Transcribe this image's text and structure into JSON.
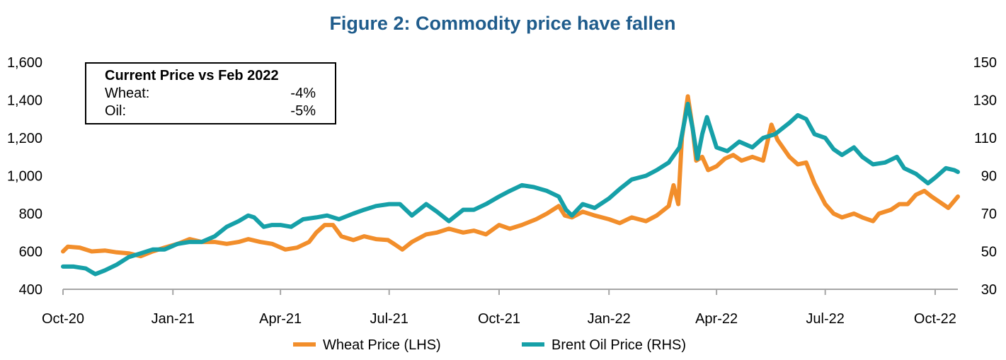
{
  "chart_data": {
    "type": "line",
    "title": "Figure 2: Commodity price have fallen",
    "x_tick_labels": [
      "Oct-20",
      "Jan-21",
      "Apr-21",
      "Jul-21",
      "Oct-21",
      "Jan-22",
      "Apr-22",
      "Jul-22",
      "Oct-22"
    ],
    "x_tick_dates": [
      "2020-10-01",
      "2021-01-01",
      "2021-04-01",
      "2021-07-01",
      "2021-10-01",
      "2022-01-01",
      "2022-04-01",
      "2022-07-01",
      "2022-10-01"
    ],
    "x_range": [
      "2020-10-01",
      "2022-10-20"
    ],
    "y_left": {
      "ticks": [
        "400",
        "600",
        "800",
        "1,000",
        "1,200",
        "1,400",
        "1,600"
      ],
      "ylim": [
        400,
        1600
      ]
    },
    "y_right": {
      "ticks": [
        "30",
        "50",
        "70",
        "90",
        "110",
        "130",
        "150"
      ],
      "ylim": [
        30,
        150
      ]
    },
    "grid": false,
    "legend_position": "bottom",
    "colors": {
      "wheat": "#f28e2b",
      "oil": "#16a0a8",
      "title": "#1f5c8c",
      "axis": "#a6a6a6"
    },
    "annotation": {
      "title": "Current Price vs Feb 2022",
      "rows": [
        {
          "label": "Wheat:",
          "value": "-4%"
        },
        {
          "label": "Oil:",
          "value": "-5%"
        }
      ]
    },
    "series": [
      {
        "name": "Wheat Price (LHS)",
        "axis": "left",
        "color": "#f28e2b",
        "points": [
          [
            "2020-10-01",
            600
          ],
          [
            "2020-10-05",
            625
          ],
          [
            "2020-10-15",
            620
          ],
          [
            "2020-10-25",
            600
          ],
          [
            "2020-11-05",
            605
          ],
          [
            "2020-11-15",
            595
          ],
          [
            "2020-11-25",
            590
          ],
          [
            "2020-12-05",
            575
          ],
          [
            "2020-12-15",
            600
          ],
          [
            "2020-12-25",
            620
          ],
          [
            "2021-01-05",
            640
          ],
          [
            "2021-01-15",
            665
          ],
          [
            "2021-01-25",
            650
          ],
          [
            "2021-02-05",
            650
          ],
          [
            "2021-02-15",
            640
          ],
          [
            "2021-02-25",
            650
          ],
          [
            "2021-03-05",
            665
          ],
          [
            "2021-03-15",
            650
          ],
          [
            "2021-03-25",
            640
          ],
          [
            "2021-04-05",
            610
          ],
          [
            "2021-04-15",
            620
          ],
          [
            "2021-04-25",
            650
          ],
          [
            "2021-05-01",
            700
          ],
          [
            "2021-05-08",
            740
          ],
          [
            "2021-05-15",
            740
          ],
          [
            "2021-05-22",
            680
          ],
          [
            "2021-06-01",
            660
          ],
          [
            "2021-06-10",
            680
          ],
          [
            "2021-06-20",
            665
          ],
          [
            "2021-06-30",
            660
          ],
          [
            "2021-07-05",
            640
          ],
          [
            "2021-07-12",
            610
          ],
          [
            "2021-07-20",
            650
          ],
          [
            "2021-08-01",
            690
          ],
          [
            "2021-08-10",
            700
          ],
          [
            "2021-08-20",
            720
          ],
          [
            "2021-09-01",
            700
          ],
          [
            "2021-09-10",
            710
          ],
          [
            "2021-09-20",
            690
          ],
          [
            "2021-10-01",
            740
          ],
          [
            "2021-10-10",
            720
          ],
          [
            "2021-10-20",
            740
          ],
          [
            "2021-11-01",
            770
          ],
          [
            "2021-11-10",
            800
          ],
          [
            "2021-11-20",
            840
          ],
          [
            "2021-11-25",
            790
          ],
          [
            "2021-12-01",
            780
          ],
          [
            "2021-12-10",
            810
          ],
          [
            "2021-12-20",
            790
          ],
          [
            "2022-01-01",
            770
          ],
          [
            "2022-01-10",
            750
          ],
          [
            "2022-01-20",
            780
          ],
          [
            "2022-02-01",
            760
          ],
          [
            "2022-02-10",
            790
          ],
          [
            "2022-02-20",
            840
          ],
          [
            "2022-02-24",
            950
          ],
          [
            "2022-02-28",
            850
          ],
          [
            "2022-03-03",
            1200
          ],
          [
            "2022-03-08",
            1420
          ],
          [
            "2022-03-12",
            1250
          ],
          [
            "2022-03-15",
            1080
          ],
          [
            "2022-03-20",
            1100
          ],
          [
            "2022-03-25",
            1030
          ],
          [
            "2022-04-01",
            1050
          ],
          [
            "2022-04-08",
            1090
          ],
          [
            "2022-04-15",
            1110
          ],
          [
            "2022-04-22",
            1080
          ],
          [
            "2022-05-01",
            1100
          ],
          [
            "2022-05-10",
            1080
          ],
          [
            "2022-05-17",
            1270
          ],
          [
            "2022-05-22",
            1190
          ],
          [
            "2022-06-01",
            1100
          ],
          [
            "2022-06-08",
            1060
          ],
          [
            "2022-06-15",
            1070
          ],
          [
            "2022-06-22",
            960
          ],
          [
            "2022-07-01",
            850
          ],
          [
            "2022-07-08",
            800
          ],
          [
            "2022-07-15",
            780
          ],
          [
            "2022-07-25",
            800
          ],
          [
            "2022-08-01",
            780
          ],
          [
            "2022-08-10",
            760
          ],
          [
            "2022-08-15",
            800
          ],
          [
            "2022-08-25",
            820
          ],
          [
            "2022-09-01",
            850
          ],
          [
            "2022-09-08",
            850
          ],
          [
            "2022-09-15",
            900
          ],
          [
            "2022-09-22",
            920
          ],
          [
            "2022-09-28",
            890
          ],
          [
            "2022-10-05",
            860
          ],
          [
            "2022-10-12",
            830
          ],
          [
            "2022-10-20",
            890
          ]
        ]
      },
      {
        "name": "Brent Oil Price (RHS)",
        "axis": "right",
        "color": "#16a0a8",
        "points": [
          [
            "2020-10-01",
            42
          ],
          [
            "2020-10-10",
            42
          ],
          [
            "2020-10-20",
            41
          ],
          [
            "2020-10-28",
            38
          ],
          [
            "2020-11-05",
            40
          ],
          [
            "2020-11-15",
            43
          ],
          [
            "2020-11-25",
            47
          ],
          [
            "2020-12-05",
            49
          ],
          [
            "2020-12-15",
            51
          ],
          [
            "2020-12-25",
            51
          ],
          [
            "2021-01-05",
            54
          ],
          [
            "2021-01-15",
            55
          ],
          [
            "2021-01-25",
            55
          ],
          [
            "2021-02-05",
            58
          ],
          [
            "2021-02-15",
            63
          ],
          [
            "2021-02-25",
            66
          ],
          [
            "2021-03-05",
            69
          ],
          [
            "2021-03-10",
            68
          ],
          [
            "2021-03-18",
            63
          ],
          [
            "2021-03-25",
            64
          ],
          [
            "2021-04-01",
            64
          ],
          [
            "2021-04-10",
            63
          ],
          [
            "2021-04-20",
            67
          ],
          [
            "2021-05-01",
            68
          ],
          [
            "2021-05-10",
            69
          ],
          [
            "2021-05-20",
            67
          ],
          [
            "2021-06-01",
            70
          ],
          [
            "2021-06-10",
            72
          ],
          [
            "2021-06-20",
            74
          ],
          [
            "2021-07-01",
            75
          ],
          [
            "2021-07-10",
            75
          ],
          [
            "2021-07-20",
            69
          ],
          [
            "2021-08-01",
            75
          ],
          [
            "2021-08-10",
            71
          ],
          [
            "2021-08-20",
            66
          ],
          [
            "2021-09-01",
            72
          ],
          [
            "2021-09-10",
            72
          ],
          [
            "2021-09-20",
            75
          ],
          [
            "2021-10-01",
            79
          ],
          [
            "2021-10-10",
            82
          ],
          [
            "2021-10-20",
            85
          ],
          [
            "2021-10-30",
            84
          ],
          [
            "2021-11-10",
            82
          ],
          [
            "2021-11-20",
            79
          ],
          [
            "2021-11-26",
            72
          ],
          [
            "2021-12-01",
            69
          ],
          [
            "2021-12-10",
            75
          ],
          [
            "2021-12-20",
            73
          ],
          [
            "2022-01-01",
            78
          ],
          [
            "2022-01-10",
            83
          ],
          [
            "2022-01-20",
            88
          ],
          [
            "2022-02-01",
            90
          ],
          [
            "2022-02-10",
            93
          ],
          [
            "2022-02-20",
            97
          ],
          [
            "2022-03-01",
            105
          ],
          [
            "2022-03-08",
            128
          ],
          [
            "2022-03-12",
            115
          ],
          [
            "2022-03-16",
            99
          ],
          [
            "2022-03-20",
            112
          ],
          [
            "2022-03-24",
            121
          ],
          [
            "2022-04-01",
            105
          ],
          [
            "2022-04-10",
            103
          ],
          [
            "2022-04-20",
            108
          ],
          [
            "2022-05-01",
            105
          ],
          [
            "2022-05-10",
            110
          ],
          [
            "2022-05-20",
            112
          ],
          [
            "2022-06-01",
            118
          ],
          [
            "2022-06-08",
            122
          ],
          [
            "2022-06-15",
            120
          ],
          [
            "2022-06-22",
            112
          ],
          [
            "2022-07-01",
            110
          ],
          [
            "2022-07-08",
            104
          ],
          [
            "2022-07-15",
            101
          ],
          [
            "2022-07-25",
            105
          ],
          [
            "2022-08-01",
            100
          ],
          [
            "2022-08-10",
            96
          ],
          [
            "2022-08-20",
            97
          ],
          [
            "2022-08-30",
            100
          ],
          [
            "2022-09-05",
            94
          ],
          [
            "2022-09-15",
            91
          ],
          [
            "2022-09-25",
            86
          ],
          [
            "2022-10-01",
            89
          ],
          [
            "2022-10-10",
            94
          ],
          [
            "2022-10-17",
            93
          ],
          [
            "2022-10-20",
            92
          ]
        ]
      }
    ]
  }
}
